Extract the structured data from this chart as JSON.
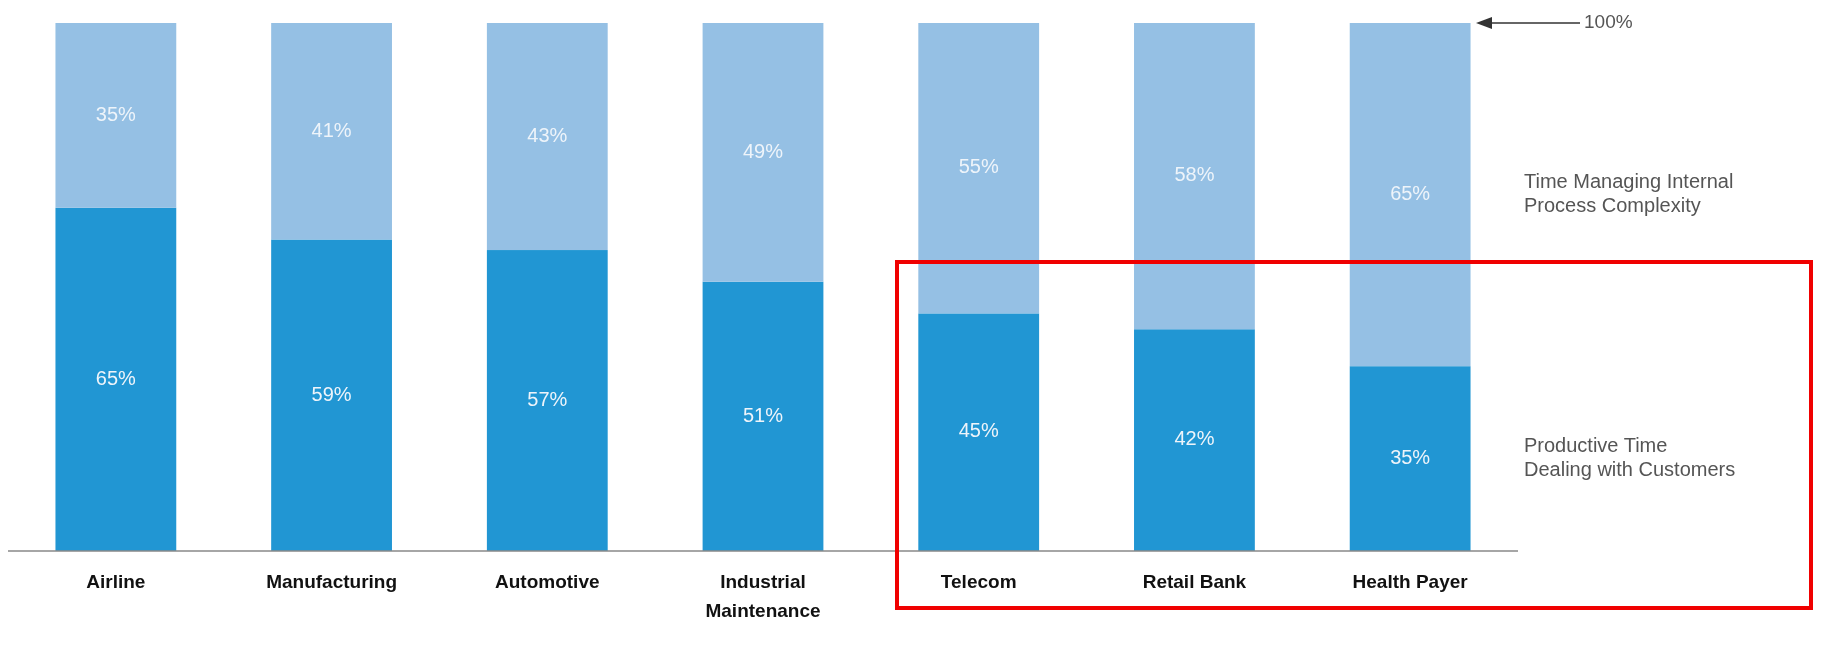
{
  "chart_data": {
    "type": "bar",
    "stacked": true,
    "categories": [
      "Airline",
      "Manufacturing",
      "Automotive",
      "Industrial Maintenance",
      "Telecom",
      "Retail Bank",
      "Health Payer"
    ],
    "series": [
      {
        "name": "Productive Time Dealing with Customers",
        "color": "#2196d3",
        "values": [
          65,
          59,
          57,
          51,
          45,
          42,
          35
        ],
        "value_labels": [
          "65%",
          "59%",
          "57%",
          "51%",
          "45%",
          "42%",
          "35%"
        ]
      },
      {
        "name": "Time Managing Internal Process Complexity",
        "color": "#95c0e4",
        "values": [
          35,
          41,
          43,
          49,
          55,
          58,
          65
        ],
        "value_labels": [
          "35%",
          "41%",
          "43%",
          "49%",
          "55%",
          "58%",
          "65%"
        ]
      }
    ],
    "ylim": [
      0,
      100
    ],
    "tick_labels": "x",
    "legend": "right",
    "annotations": [
      "100%"
    ]
  }
}
